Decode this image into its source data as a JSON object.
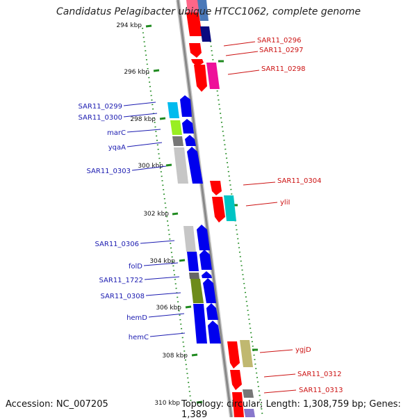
{
  "title": "Candidatus Pelagibacter ubique HTCC1062, complete genome",
  "accession": "Accession: NC_007205",
  "stats": "Topology: circular; Length: 1,308,759 bp; Genes: 1,389",
  "ticks": [
    "294 kbp",
    "296 kbp",
    "298 kbp",
    "300 kbp",
    "302 kbp",
    "304 kbp",
    "306 kbp",
    "308 kbp",
    "310 kbp"
  ],
  "left_genes": [
    "SAR11_0299",
    "SAR11_0300",
    "marC",
    "yqaA",
    "SAR11_0303",
    "SAR11_0306",
    "folD",
    "SAR11_1722",
    "SAR11_0308",
    "hemD",
    "hemC"
  ],
  "right_genes": [
    "SAR11_0296",
    "SAR11_0297",
    "SAR11_0298",
    "SAR11_0304",
    "yliI",
    "ygjD",
    "SAR11_0312",
    "SAR11_0313"
  ],
  "colors": {
    "forward_label": "#1a1ab0",
    "reverse_label": "#cc1111",
    "tick": "#1f8a1f",
    "backbone": "#888888"
  }
}
